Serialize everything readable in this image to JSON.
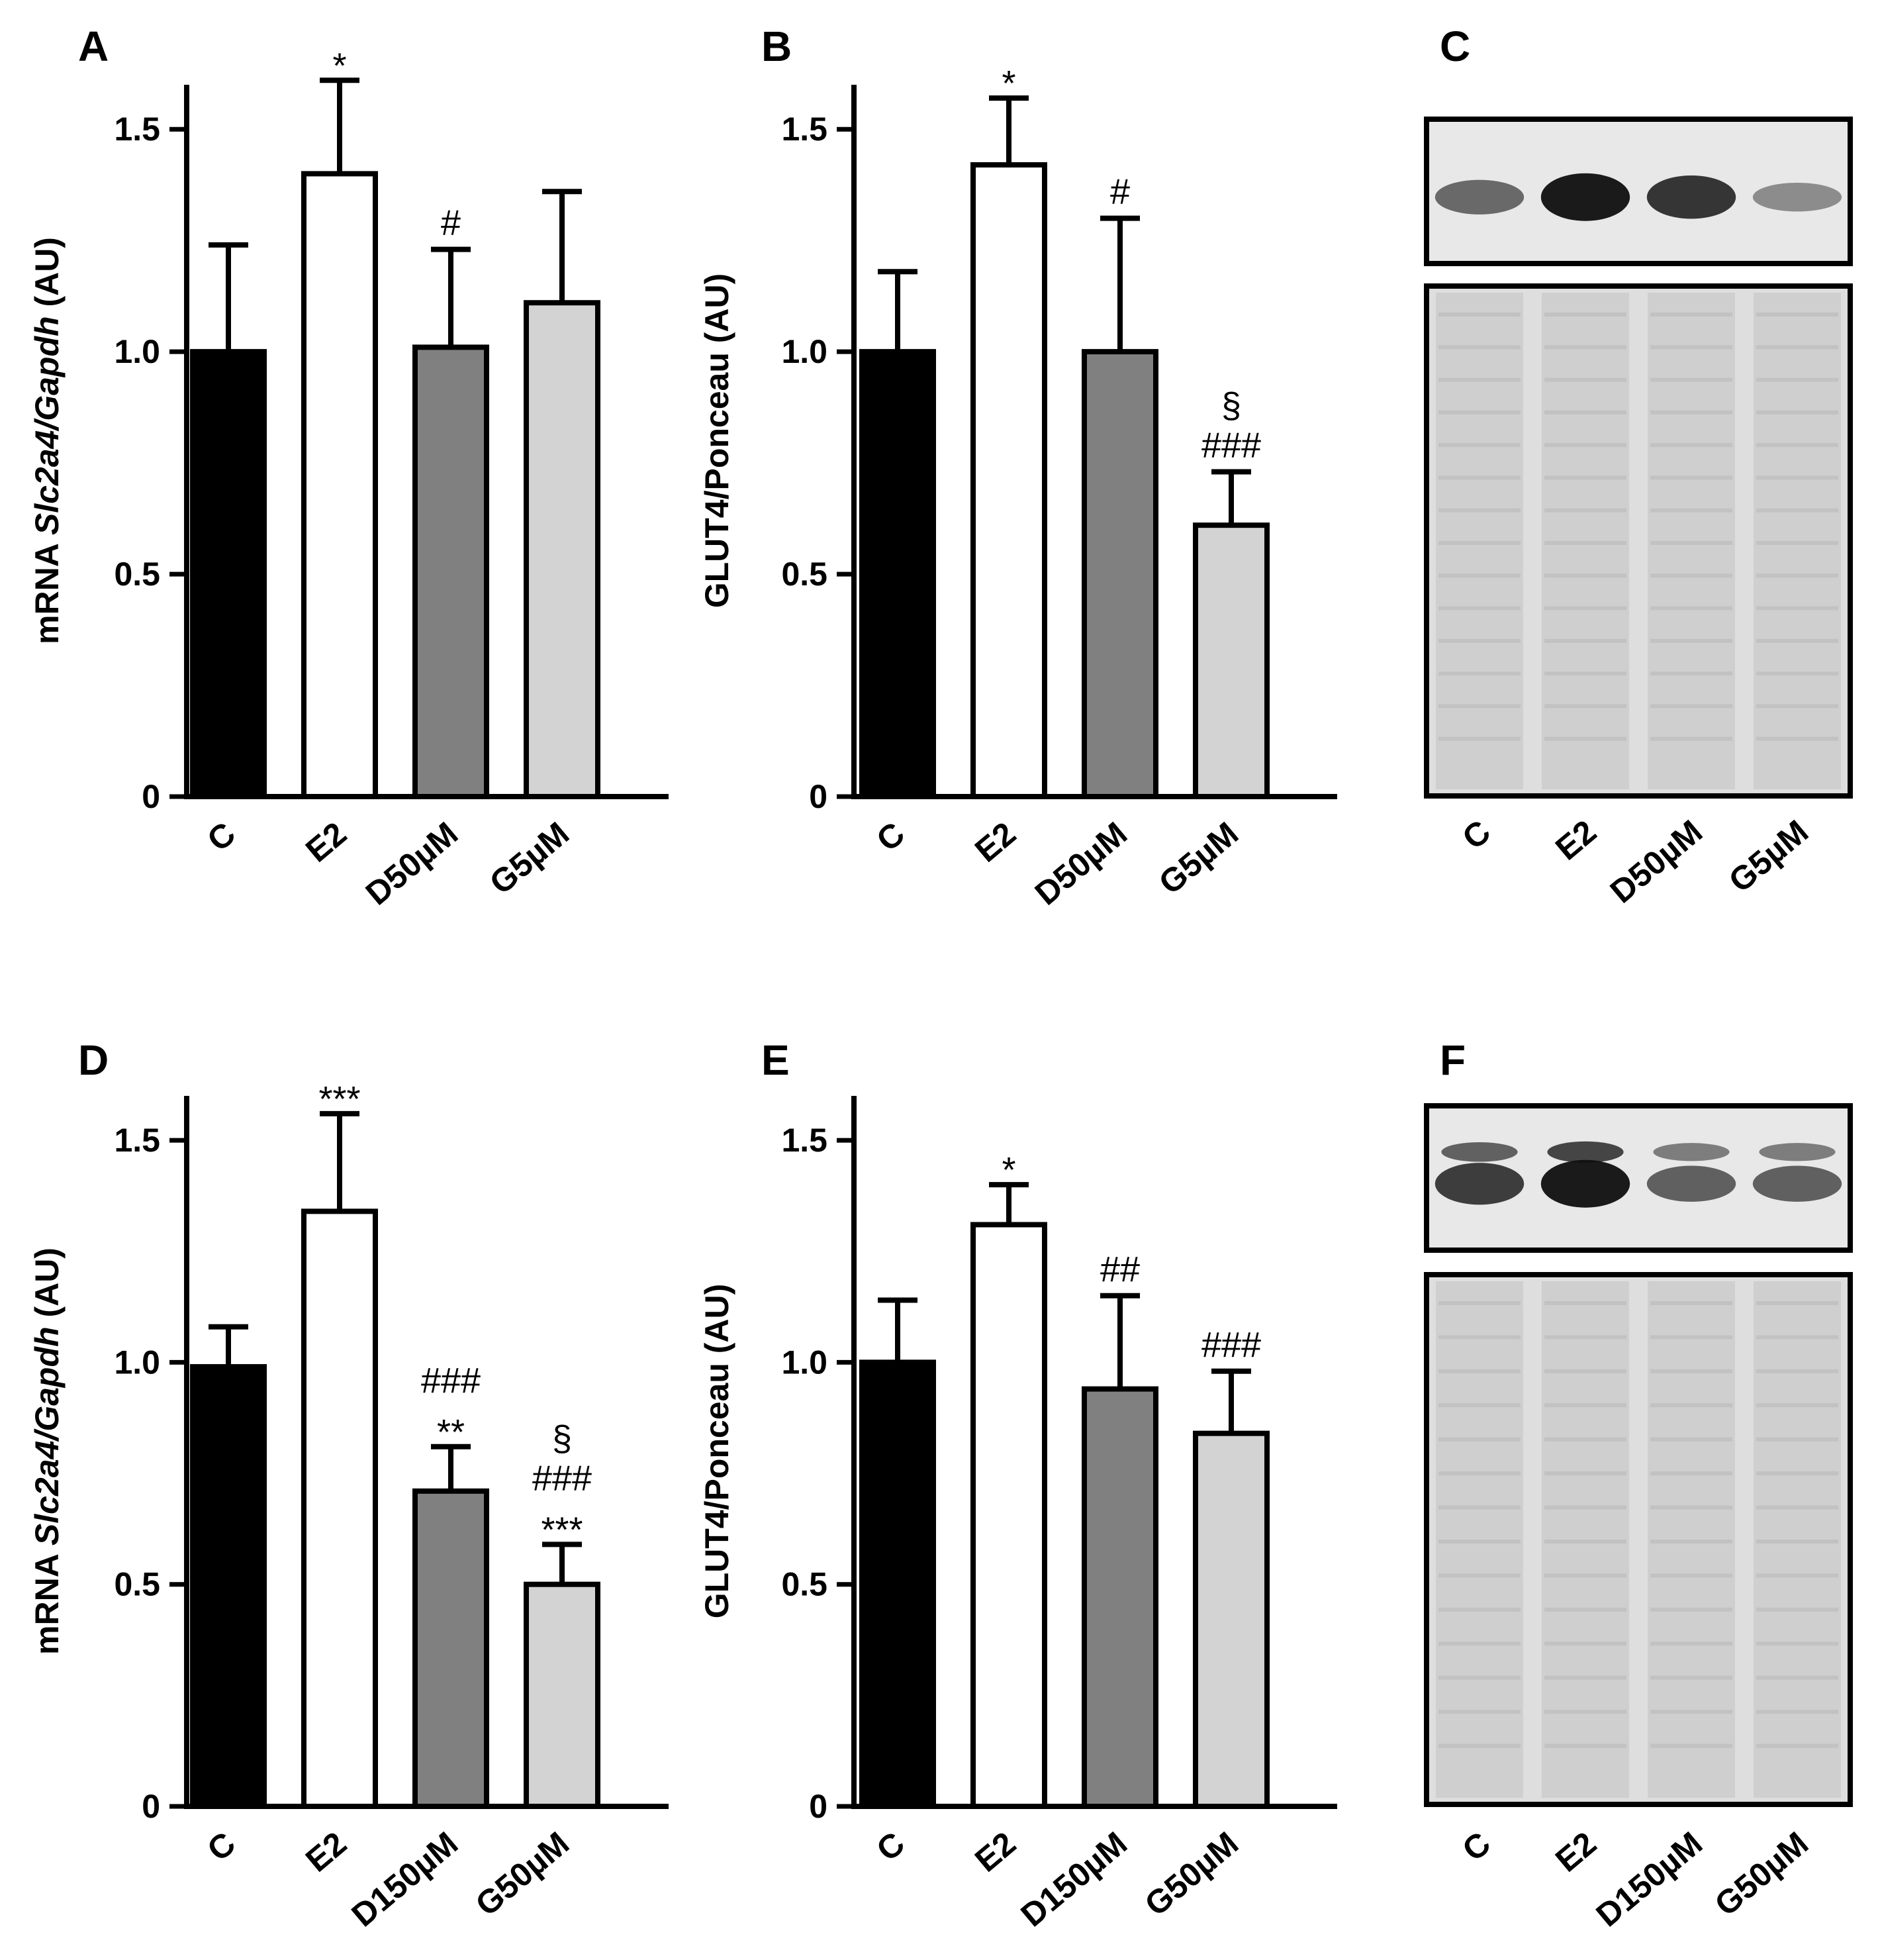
{
  "chart_data": [
    {
      "panel": "A",
      "type": "bar",
      "ylabel_parts": [
        {
          "text": "mRNA ",
          "italic": false
        },
        {
          "text": "Slc2a4/Gapdh",
          "italic": true
        },
        {
          "text": " (AU)",
          "italic": false
        }
      ],
      "categories": [
        "C",
        "E2",
        "D50µM",
        "G5µM"
      ],
      "values": [
        1.0,
        1.4,
        1.01,
        1.11
      ],
      "errors": [
        0.24,
        0.21,
        0.22,
        0.25
      ],
      "fills": [
        "#000000",
        "#ffffff",
        "#808080",
        "#d3d3d3"
      ],
      "annotations": [
        [],
        [
          "*"
        ],
        [
          "#"
        ],
        []
      ],
      "ylim": [
        0,
        1.6
      ],
      "yticks": [
        0,
        0.5,
        1.0,
        1.5
      ],
      "ytick_labels": [
        "0",
        "0.5",
        "1.0",
        "1.5"
      ]
    },
    {
      "panel": "B",
      "type": "bar",
      "ylabel_parts": [
        {
          "text": "GLUT4/Ponceau (AU)",
          "italic": false
        }
      ],
      "categories": [
        "C",
        "E2",
        "D50µM",
        "G5µM"
      ],
      "values": [
        1.0,
        1.42,
        1.0,
        0.61
      ],
      "errors": [
        0.18,
        0.15,
        0.3,
        0.12
      ],
      "fills": [
        "#000000",
        "#ffffff",
        "#808080",
        "#d3d3d3"
      ],
      "annotations": [
        [],
        [
          "*"
        ],
        [
          "#"
        ],
        [
          "§",
          "###"
        ]
      ],
      "ylim": [
        0,
        1.6
      ],
      "yticks": [
        0,
        0.5,
        1.0,
        1.5
      ],
      "ytick_labels": [
        "0",
        "0.5",
        "1.0",
        "1.5"
      ]
    },
    {
      "panel": "D",
      "type": "bar",
      "ylabel_parts": [
        {
          "text": "mRNA ",
          "italic": false
        },
        {
          "text": "Slc2a4/Gapdh",
          "italic": true
        },
        {
          "text": " (AU)",
          "italic": false
        }
      ],
      "categories": [
        "C",
        "E2",
        "D150µM",
        "G50µM"
      ],
      "values": [
        0.99,
        1.34,
        0.71,
        0.5
      ],
      "errors": [
        0.09,
        0.22,
        0.1,
        0.09
      ],
      "fills": [
        "#000000",
        "#ffffff",
        "#808080",
        "#d3d3d3"
      ],
      "annotations": [
        [],
        [
          "***"
        ],
        [
          "###",
          "**"
        ],
        [
          "§",
          "###",
          "***"
        ]
      ],
      "ylim": [
        0,
        1.6
      ],
      "yticks": [
        0,
        0.5,
        1.0,
        1.5
      ],
      "ytick_labels": [
        "0",
        "0.5",
        "1.0",
        "1.5"
      ]
    },
    {
      "panel": "E",
      "type": "bar",
      "ylabel_parts": [
        {
          "text": "GLUT4/Ponceau (AU)",
          "italic": false
        }
      ],
      "categories": [
        "C",
        "E2",
        "D150µM",
        "G50µM"
      ],
      "values": [
        1.0,
        1.31,
        0.94,
        0.84
      ],
      "errors": [
        0.14,
        0.09,
        0.21,
        0.14
      ],
      "fills": [
        "#000000",
        "#ffffff",
        "#808080",
        "#d3d3d3"
      ],
      "annotations": [
        [],
        [
          "*"
        ],
        [
          "##"
        ],
        [
          "###"
        ]
      ],
      "ylim": [
        0,
        1.6
      ],
      "yticks": [
        0,
        0.5,
        1.0,
        1.5
      ],
      "ytick_labels": [
        "0",
        "0.5",
        "1.0",
        "1.5"
      ]
    }
  ],
  "blots": [
    {
      "panel": "C",
      "lanes": [
        "C",
        "E2",
        "D50µM",
        "G5µM"
      ],
      "band_intensity": [
        0.55,
        1.0,
        0.85,
        0.35
      ]
    },
    {
      "panel": "F",
      "lanes": [
        "C",
        "E2",
        "D150µM",
        "G50µM"
      ],
      "band_intensity": [
        0.8,
        1.0,
        0.6,
        0.6
      ]
    }
  ]
}
